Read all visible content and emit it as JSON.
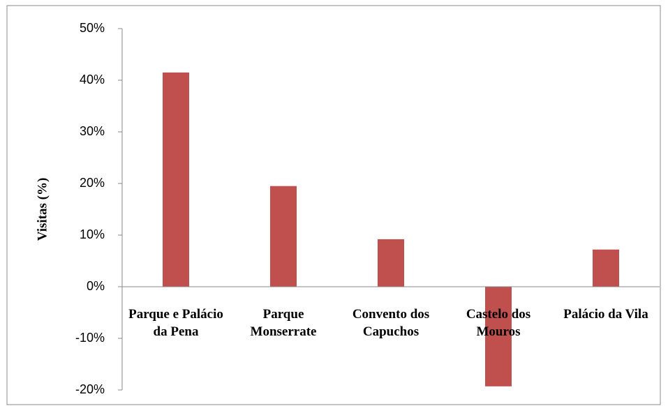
{
  "chart_data": {
    "type": "bar",
    "y_label": "Visitas (%)",
    "categories": [
      "Parque e Palácio da Pena",
      "Parque Monserrate",
      "Convento dos Capuchos",
      "Castelo dos Mouros",
      "Palácio da Vila"
    ],
    "values": [
      41.5,
      19.5,
      9.2,
      -19.3,
      7.2
    ],
    "color": "#c0504d",
    "ylim": [
      -20,
      50
    ],
    "yticks": [
      {
        "value": -20,
        "label": "-20%"
      },
      {
        "value": -10,
        "label": "-10%"
      },
      {
        "value": 0,
        "label": "0%"
      },
      {
        "value": 10,
        "label": "10%"
      },
      {
        "value": 20,
        "label": "20%"
      },
      {
        "value": 30,
        "label": "30%"
      },
      {
        "value": 40,
        "label": "40%"
      },
      {
        "value": 50,
        "label": "50%"
      }
    ],
    "grid": false
  }
}
